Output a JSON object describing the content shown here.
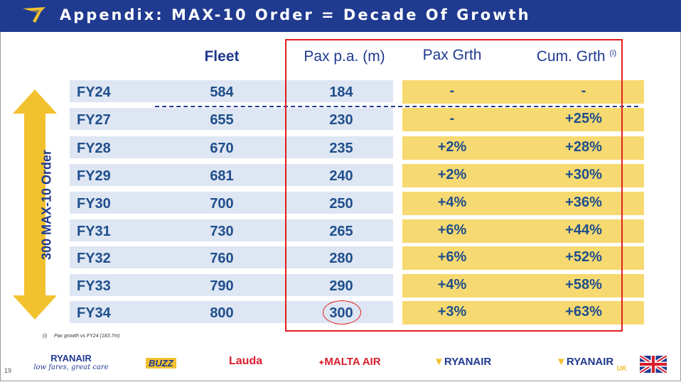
{
  "header": {
    "title": "Appendix: MAX-10 Order = Decade Of Growth"
  },
  "columns": {
    "fleet": "Fleet",
    "pax": "Pax p.a. (m)",
    "pax_growth": "Pax Grth",
    "cum_growth": "Cum. Grth",
    "cum_growth_note": "(i)"
  },
  "rows": [
    {
      "fy": "FY24",
      "fleet": "584",
      "pax": "184",
      "pax_growth": "-",
      "cum_growth": "-"
    },
    {
      "fy": "FY27",
      "fleet": "655",
      "pax": "230",
      "pax_growth": "-",
      "cum_growth": "+25%"
    },
    {
      "fy": "FY28",
      "fleet": "670",
      "pax": "235",
      "pax_growth": "+2%",
      "cum_growth": "+28%"
    },
    {
      "fy": "FY29",
      "fleet": "681",
      "pax": "240",
      "pax_growth": "+2%",
      "cum_growth": "+30%"
    },
    {
      "fy": "FY30",
      "fleet": "700",
      "pax": "250",
      "pax_growth": "+4%",
      "cum_growth": "+36%"
    },
    {
      "fy": "FY31",
      "fleet": "730",
      "pax": "265",
      "pax_growth": "+6%",
      "cum_growth": "+44%"
    },
    {
      "fy": "FY32",
      "fleet": "760",
      "pax": "280",
      "pax_growth": "+6%",
      "cum_growth": "+52%"
    },
    {
      "fy": "FY33",
      "fleet": "790",
      "pax": "290",
      "pax_growth": "+4%",
      "cum_growth": "+58%"
    },
    {
      "fy": "FY34",
      "fleet": "800",
      "pax": "300",
      "pax_growth": "+3%",
      "cum_growth": "+63%"
    }
  ],
  "arrow_label": "300 MAX-10 Order",
  "footnote": {
    "marker": "(i)",
    "text": "Pax growth vs FY24 (183.7m)"
  },
  "page_number": "19",
  "brands": {
    "ryanair_group": "RYANAIR",
    "ryanair_group_tagline": "low fares, great care",
    "buzz": "BUZZ",
    "lauda": "Lauda",
    "malta_air": "MALTA AIR",
    "ryanair": "RYANAIR",
    "ryanair_uk": "RYANAIR",
    "ryanair_uk_suffix": "UK"
  },
  "colors": {
    "header": "#1f3a8f",
    "text": "#1f4e8c",
    "row_blue": "#dde6f2",
    "row_yellow": "#f6d970",
    "highlight": "#e02020",
    "arrow": "#f2c12e"
  }
}
